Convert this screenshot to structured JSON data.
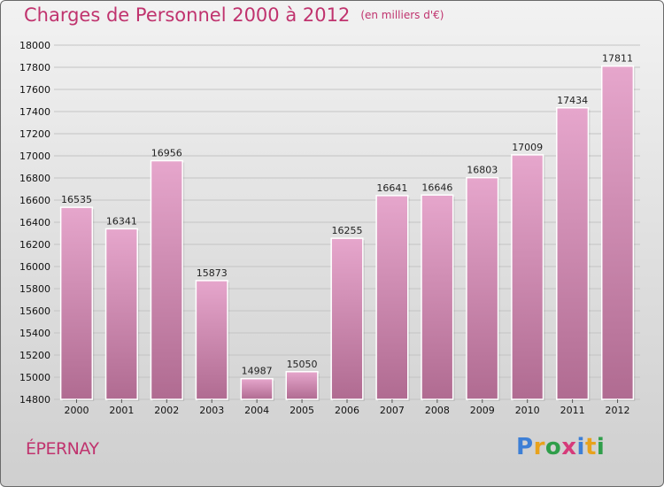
{
  "header": {
    "title": "Charges de Personnel 2000 à 2012",
    "subtitle": "(en milliers d'€)"
  },
  "footer": {
    "city": "ÉPERNAY",
    "logo": {
      "letters": [
        "P",
        "r",
        "o",
        "x",
        "i",
        "t",
        "i"
      ],
      "colors": [
        "#3d7fd6",
        "#e8a21c",
        "#2f9e4a",
        "#d63b7a",
        "#3d7fd6",
        "#e8a21c",
        "#2f9e4a"
      ]
    }
  },
  "colors": {
    "bar_top": "#e6a6cc",
    "bar_bottom": "#b06b91",
    "accent": "#c0336e"
  },
  "chart_data": {
    "type": "bar",
    "title": "Charges de Personnel 2000 à 2012",
    "subtitle": "(en milliers d'€)",
    "xlabel": "",
    "ylabel": "",
    "categories": [
      "2000",
      "2001",
      "2002",
      "2003",
      "2004",
      "2005",
      "2006",
      "2007",
      "2008",
      "2009",
      "2010",
      "2011",
      "2012"
    ],
    "values": [
      16535,
      16341,
      16956,
      15873,
      14987,
      15050,
      16255,
      16641,
      16646,
      16803,
      17009,
      17434,
      17811
    ],
    "ylim": [
      14800,
      18000
    ],
    "yticks": [
      14800,
      15000,
      15200,
      15400,
      15600,
      15800,
      16000,
      16200,
      16400,
      16600,
      16800,
      17000,
      17200,
      17400,
      17600,
      17800,
      18000
    ],
    "grid": true,
    "legend": "none"
  }
}
